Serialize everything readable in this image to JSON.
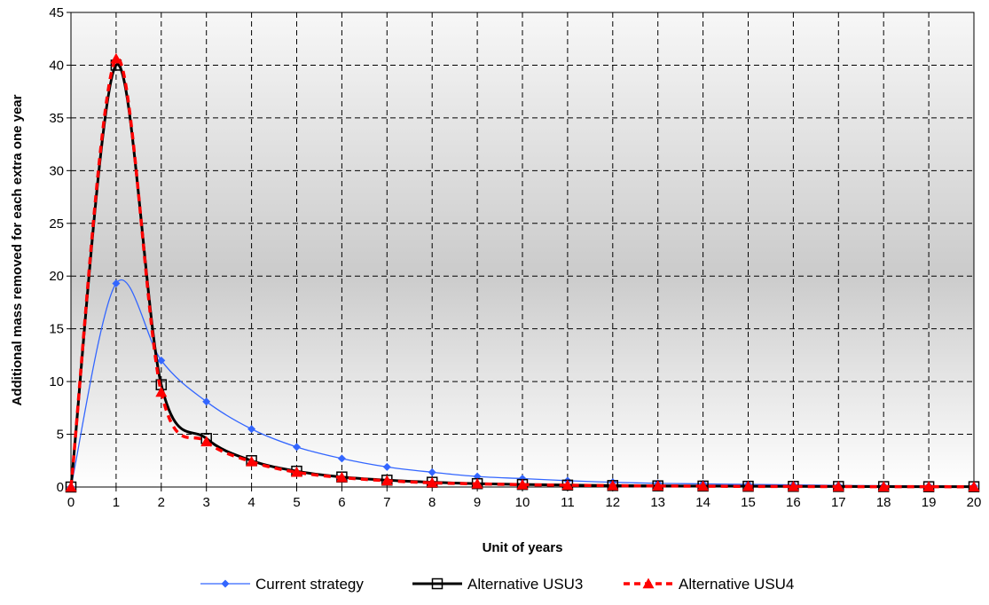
{
  "chart_data": {
    "type": "line",
    "title": "",
    "xlabel": "Unit of years",
    "ylabel": "Additional mass removed for each extra one year",
    "xlim": [
      0,
      20
    ],
    "ylim": [
      0,
      45
    ],
    "x_ticks": [
      0,
      1,
      2,
      3,
      4,
      5,
      6,
      7,
      8,
      9,
      10,
      11,
      12,
      13,
      14,
      15,
      16,
      17,
      18,
      19,
      20
    ],
    "y_ticks": [
      0,
      5,
      10,
      15,
      20,
      25,
      30,
      35,
      40,
      45
    ],
    "grid": true,
    "legend_position": "bottom",
    "x": [
      0,
      1,
      2,
      3,
      4,
      5,
      6,
      7,
      8,
      9,
      10,
      11,
      12,
      13,
      14,
      15,
      16,
      17,
      18,
      19,
      20
    ],
    "series": [
      {
        "name": "Current strategy",
        "color": "#3366ff",
        "marker": "diamond",
        "line": "solid",
        "values": [
          0,
          19.3,
          12.0,
          8.1,
          5.5,
          3.8,
          2.7,
          1.9,
          1.4,
          1.0,
          0.8,
          0.6,
          0.45,
          0.35,
          0.3,
          0.25,
          0.2,
          0.15,
          0.12,
          0.1,
          0.08
        ]
      },
      {
        "name": "Alternative USU3",
        "color": "#000000",
        "marker": "square",
        "line": "solid",
        "values": [
          0,
          40.0,
          9.7,
          4.6,
          2.5,
          1.5,
          0.95,
          0.65,
          0.45,
          0.32,
          0.24,
          0.18,
          0.14,
          0.11,
          0.09,
          0.07,
          0.06,
          0.05,
          0.04,
          0.03,
          0.03
        ]
      },
      {
        "name": "Alternative USU4",
        "color": "#ff0000",
        "marker": "triangle",
        "line": "dashed",
        "values": [
          0,
          40.6,
          9.0,
          4.3,
          2.4,
          1.4,
          0.9,
          0.6,
          0.4,
          0.3,
          0.22,
          0.17,
          0.13,
          0.1,
          0.08,
          0.06,
          0.05,
          0.04,
          0.03,
          0.03,
          0.02
        ]
      }
    ]
  }
}
